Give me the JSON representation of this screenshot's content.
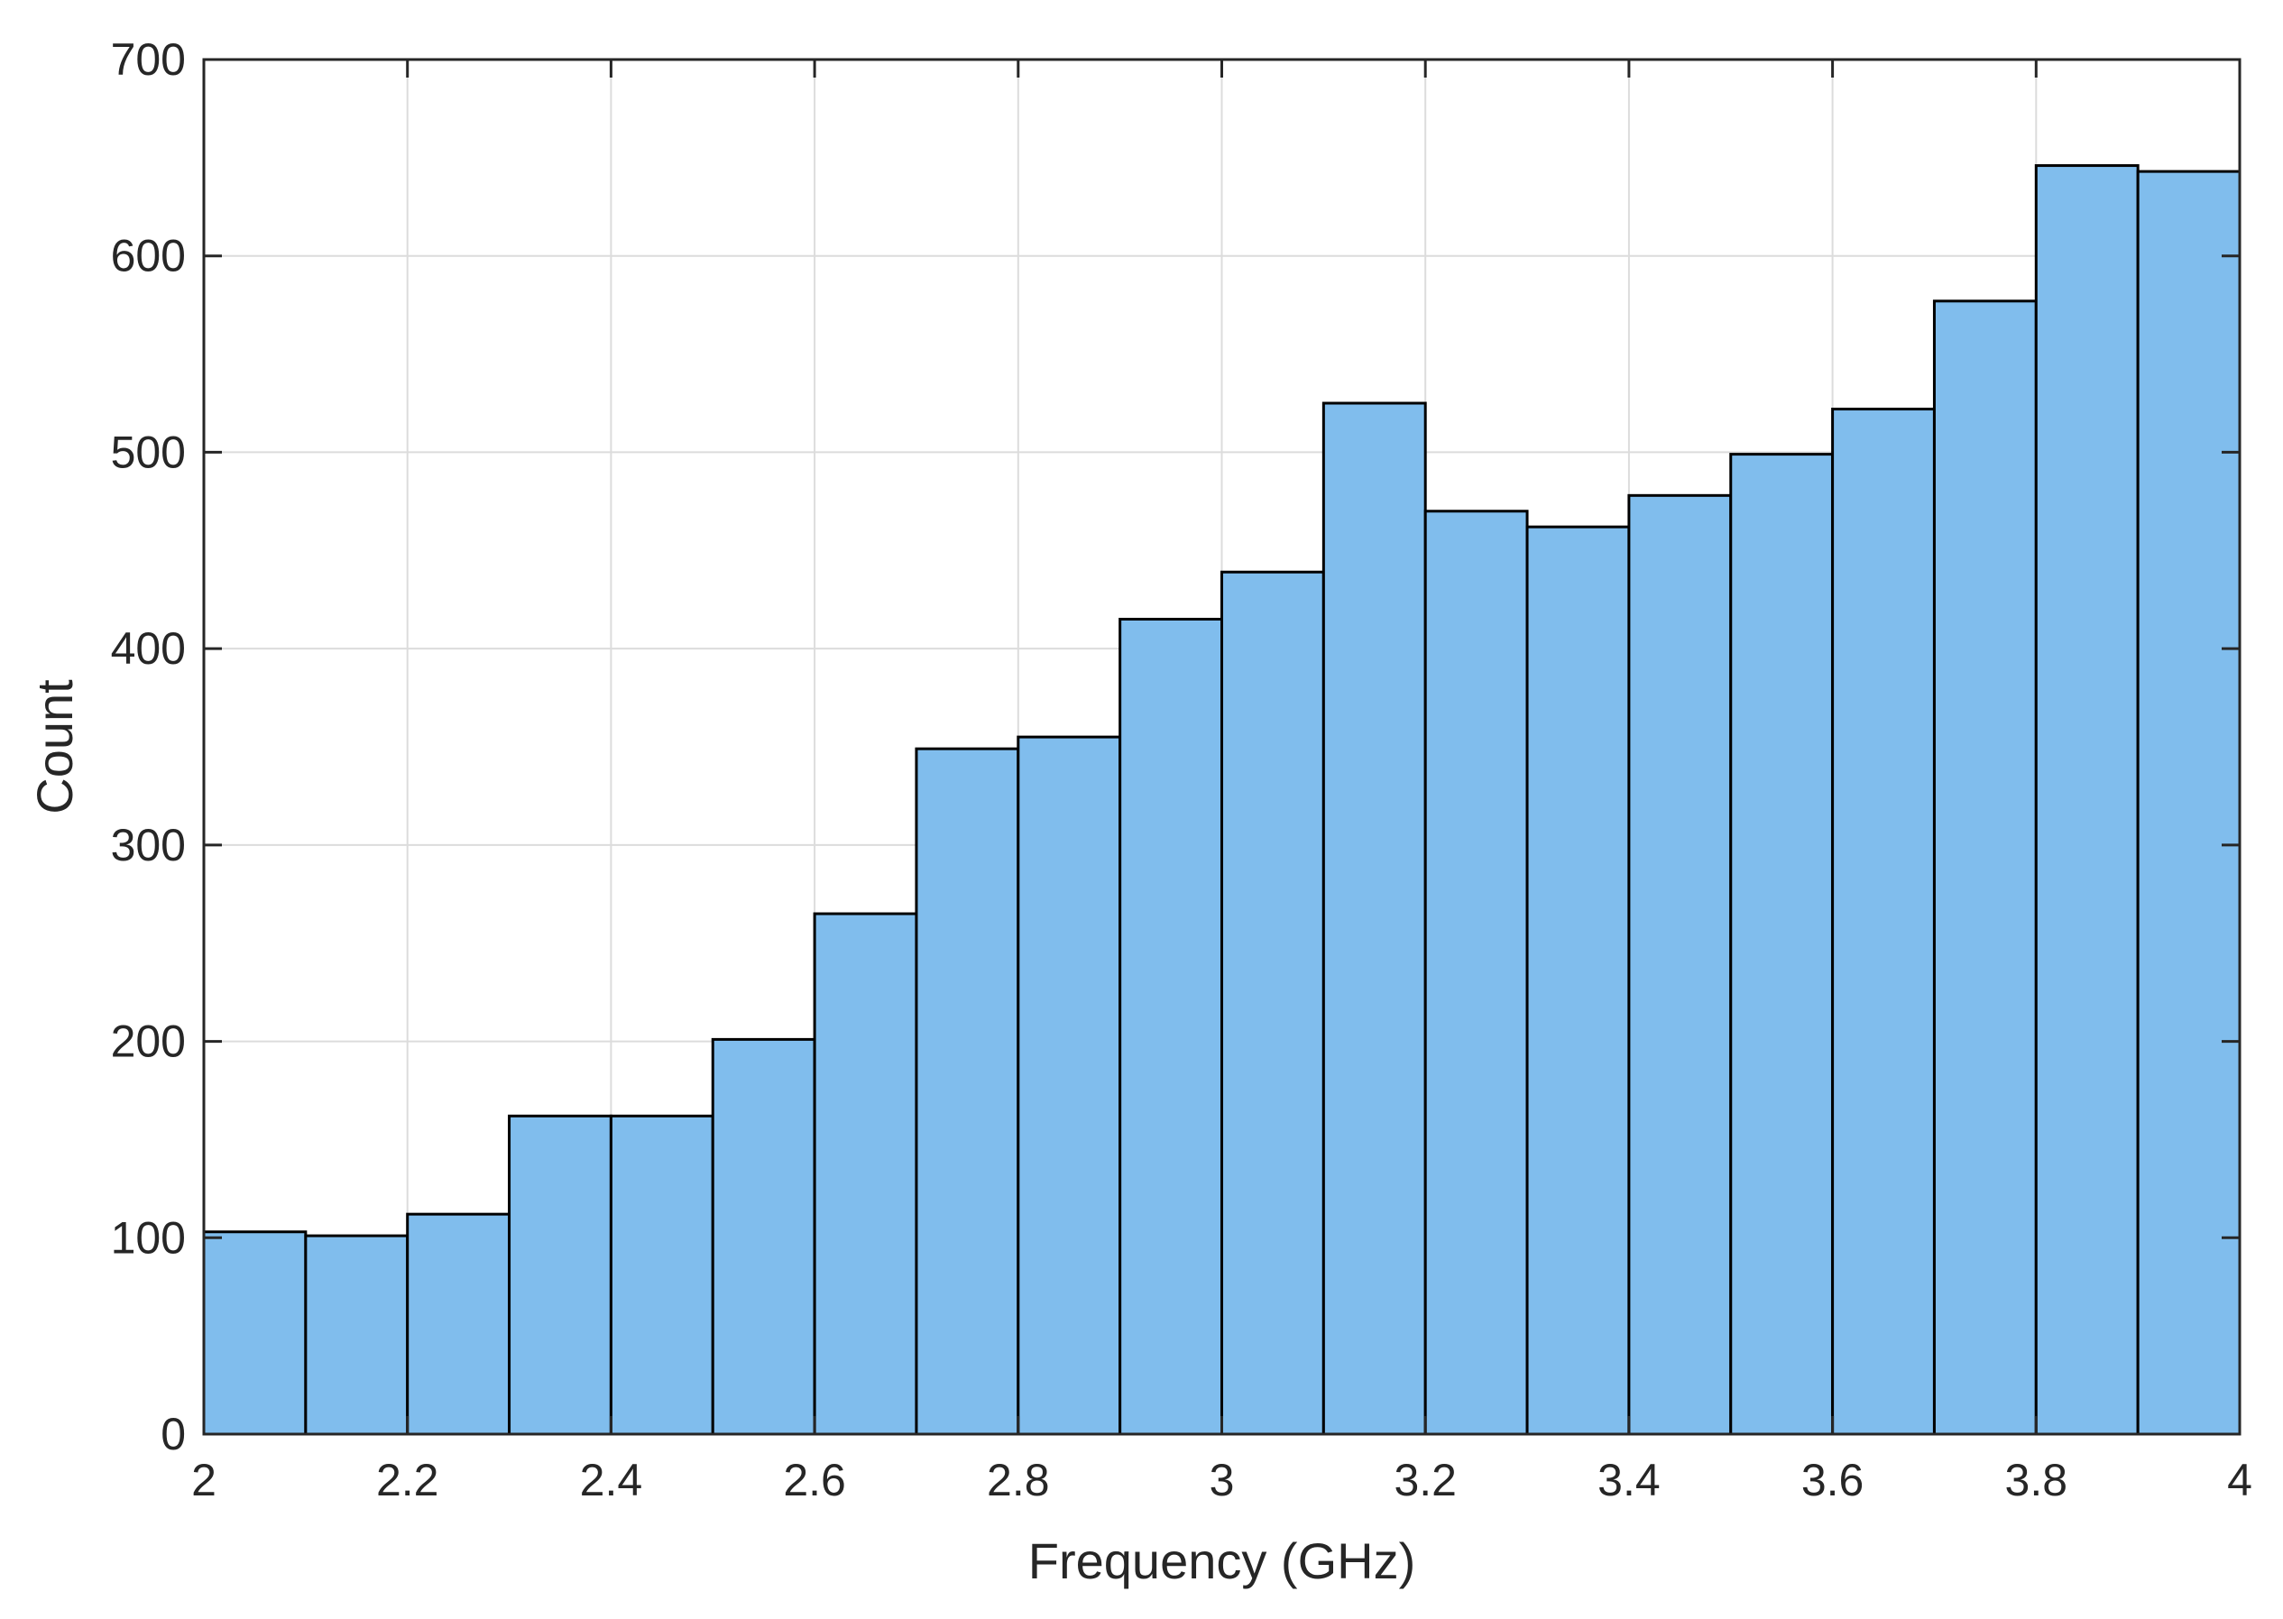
{
  "chart_data": {
    "type": "bar",
    "subtype": "histogram",
    "title": "",
    "xlabel": "Frequency (GHz)",
    "ylabel": "Count",
    "bin_edges": [
      2.0,
      2.1,
      2.2,
      2.3,
      2.4,
      2.5,
      2.6,
      2.7,
      2.8,
      2.9,
      3.0,
      3.1,
      3.2,
      3.3,
      3.4,
      3.5,
      3.6,
      3.7,
      3.8,
      3.9,
      4.0
    ],
    "values": [
      103,
      101,
      112,
      162,
      162,
      201,
      265,
      349,
      355,
      415,
      439,
      525,
      470,
      462,
      478,
      499,
      522,
      577,
      646,
      643
    ],
    "xlim": [
      2,
      4
    ],
    "ylim": [
      0,
      700
    ],
    "xticks": [
      "2",
      "2.2",
      "2.4",
      "2.6",
      "2.8",
      "3",
      "3.2",
      "3.4",
      "3.6",
      "3.8",
      "4"
    ],
    "yticks": [
      "0",
      "100",
      "200",
      "300",
      "400",
      "500",
      "600",
      "700"
    ],
    "grid": true,
    "legend": "none",
    "colors": {
      "bar_fill": "#80bded",
      "bar_edge": "#000000",
      "axis": "#262626",
      "grid": "#dcdcdc"
    }
  }
}
